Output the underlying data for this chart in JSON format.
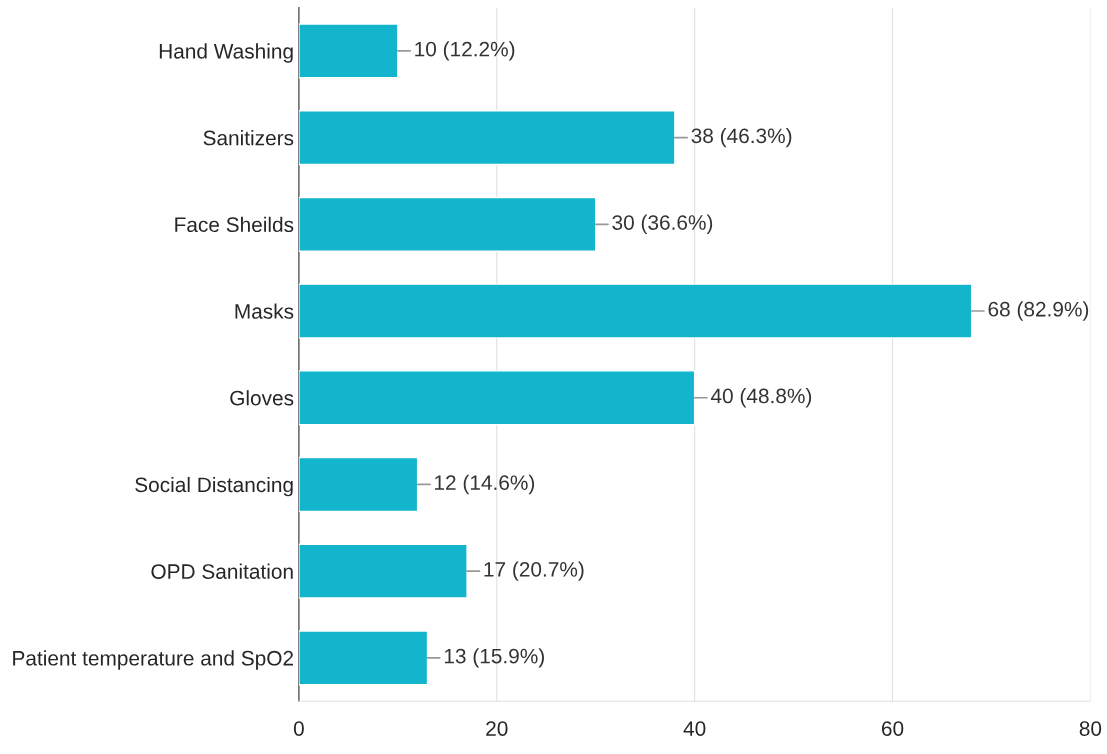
{
  "chart_data": {
    "type": "bar",
    "orientation": "horizontal",
    "categories": [
      "Hand Washing",
      "Sanitizers",
      "Face Sheilds",
      "Masks",
      "Gloves",
      "Social Distancing",
      "OPD Sanitation",
      "Patient temperature and SpO2"
    ],
    "values": [
      10,
      38,
      30,
      68,
      40,
      12,
      17,
      13
    ],
    "value_labels": [
      "10 (12.2%)",
      "38 (46.3%)",
      "30 (36.6%)",
      "68 (82.9%)",
      "40 (48.8%)",
      "12 (14.6%)",
      "17 (20.7%)",
      "13 (15.9%)"
    ],
    "color": "#12b5cb",
    "xlim": [
      0,
      80
    ],
    "xticks": [
      0,
      20,
      40,
      60,
      80
    ],
    "grid": "x"
  }
}
